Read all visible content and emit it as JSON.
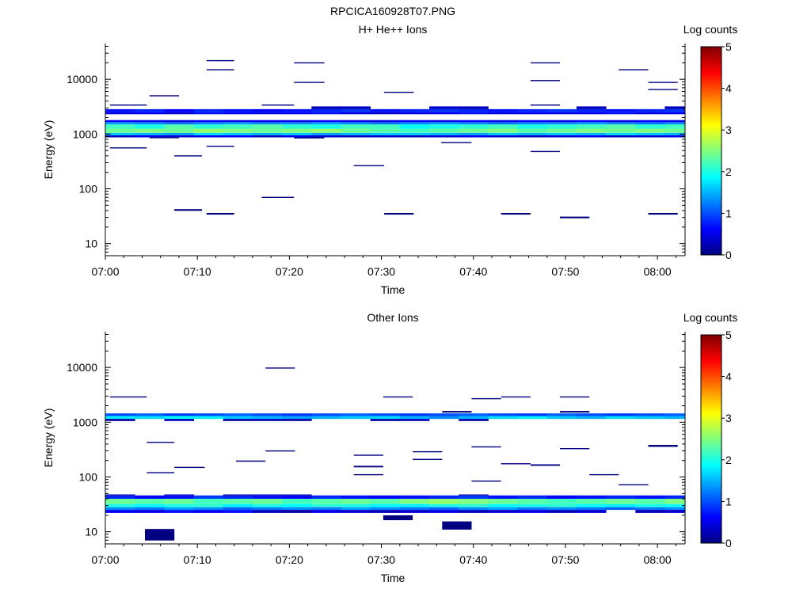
{
  "page_title": "RPCICA160928T07.PNG",
  "chart_data": [
    {
      "type": "heatmap",
      "title": "H+ He++ Ions",
      "xlabel": "Time",
      "ylabel": "Energy (eV)",
      "x_ticks": [
        "07:00",
        "07:10",
        "07:20",
        "07:30",
        "07:40",
        "07:50",
        "08:00"
      ],
      "x_range_minutes": [
        0,
        63
      ],
      "y_scale": "log",
      "ylim": [
        6,
        45000
      ],
      "y_ticks": [
        "10",
        "100",
        "1000",
        "10000"
      ],
      "y_tick_values": [
        10,
        100,
        1000,
        10000
      ],
      "colorbar": {
        "label": "Log counts",
        "range": [
          0,
          5
        ],
        "ticks": [
          "0",
          "1",
          "2",
          "3",
          "4",
          "5"
        ]
      },
      "time_bins_minutes": [
        0,
        3.2,
        6.4,
        9.6,
        12.8,
        16,
        19.2,
        22.4,
        25.6,
        28.8,
        32,
        35.2,
        38.4,
        41.6,
        44.8,
        48,
        51.2,
        54.4,
        57.6,
        60.8,
        63
      ],
      "bands": [
        {
          "elow": 1050,
          "ehigh": 1250,
          "levels": [
            2.4,
            2.5,
            2.4,
            2.6,
            2.5,
            2.4,
            2.5,
            2.6,
            2.4,
            2.3,
            2.2,
            2.3,
            2.4,
            2.5,
            2.3,
            2.4,
            2.5,
            2.4,
            2.5,
            2.4
          ]
        },
        {
          "elow": 1250,
          "ehigh": 1500,
          "levels": [
            2.2,
            2.0,
            2.3,
            2.1,
            2.2,
            2.3,
            2.1,
            2.0,
            2.2,
            2.2,
            1.9,
            2.0,
            2.1,
            2.2,
            2.0,
            2.1,
            2.2,
            2.3,
            2.1,
            2.2
          ]
        },
        {
          "elow": 950,
          "ehigh": 1050,
          "levels": [
            1.6,
            1.5,
            1.4,
            1.7,
            1.6,
            1.5,
            1.6,
            1.4,
            1.5,
            1.6,
            1.6,
            1.5,
            1.4,
            1.6,
            1.5,
            1.6,
            1.5,
            1.7,
            1.6,
            1.5
          ]
        },
        {
          "elow": 1500,
          "ehigh": 1650,
          "levels": [
            1.4,
            1.3,
            1.2,
            1.3,
            1.4,
            1.3,
            1.3,
            1.4,
            1.3,
            1.2,
            1.3,
            1.4,
            1.3,
            1.2,
            1.3,
            1.3,
            1.4,
            1.3,
            1.2,
            1.3
          ]
        },
        {
          "elow": 1650,
          "ehigh": 1800,
          "levels": [
            0.6,
            0.5,
            0.5,
            0.6,
            0.5,
            0.6,
            0.5,
            0.6,
            0.5,
            0.5,
            0.6,
            0.5,
            0.6,
            0.5,
            0.6,
            0.5,
            0.6,
            0.5,
            0.6,
            0.5
          ]
        },
        {
          "elow": 870,
          "ehigh": 950,
          "levels": [
            0.3,
            0.5,
            0.4,
            0.5,
            0.6,
            0.3,
            0.5,
            0.4,
            0.3,
            0.4,
            0.3,
            0.4,
            0.5,
            0.4,
            0.3,
            0.4,
            0.5,
            0.3,
            0.4,
            0.5
          ]
        },
        {
          "elow": 2300,
          "ehigh": 2550,
          "levels": [
            0.5,
            0.6,
            0.4,
            0.7,
            0.6,
            0.5,
            0.6,
            0.7,
            0.5,
            0.4,
            0.5,
            0.6,
            0.7,
            0.5,
            0.6,
            0.5,
            0.6,
            0.7,
            0.5,
            0.6
          ]
        },
        {
          "elow": 2550,
          "ehigh": 2850,
          "levels": [
            0.7,
            0.8,
            0.6,
            0.8,
            0.7,
            0.6,
            0.7,
            0.8,
            0.9,
            0.7,
            0.8,
            0.9,
            0.8,
            0.7,
            0.8,
            0.9,
            0.8,
            0.7,
            0.8,
            0.9
          ]
        },
        {
          "elow": 2850,
          "ehigh": 3200,
          "levels": [
            0.0,
            0.0,
            0.0,
            0.0,
            0.0,
            0.0,
            0.0,
            0.3,
            0.3,
            0.0,
            0.0,
            0.4,
            0.3,
            0.0,
            0.0,
            0.0,
            0.3,
            0.0,
            0.0,
            0.3
          ]
        }
      ],
      "segments": [
        {
          "t0": 0.5,
          "t1": 4.5,
          "e": 3400,
          "h": 0.018,
          "level": 0
        },
        {
          "t0": 4.8,
          "t1": 8.0,
          "e": 5000,
          "h": 0.02,
          "level": 0
        },
        {
          "t0": 0.5,
          "t1": 4.5,
          "e": 560,
          "h": 0.018,
          "level": 0
        },
        {
          "t0": 4.8,
          "t1": 8.0,
          "e": 860,
          "h": 0.02,
          "level": 0
        },
        {
          "t0": 7.5,
          "t1": 10.5,
          "e": 400,
          "h": 0.018,
          "level": 0
        },
        {
          "t0": 7.5,
          "t1": 10.5,
          "e": 41,
          "h": 0.03,
          "level": 0
        },
        {
          "t0": 11,
          "t1": 14,
          "e": 22000,
          "h": 0.018,
          "level": 0
        },
        {
          "t0": 11,
          "t1": 14,
          "e": 15000,
          "h": 0.018,
          "level": 0
        },
        {
          "t0": 11,
          "t1": 14,
          "e": 600,
          "h": 0.018,
          "level": 0
        },
        {
          "t0": 11,
          "t1": 14,
          "e": 35,
          "h": 0.03,
          "level": 0
        },
        {
          "t0": 17,
          "t1": 20.5,
          "e": 70,
          "h": 0.018,
          "level": 0
        },
        {
          "t0": 17,
          "t1": 20.5,
          "e": 3400,
          "h": 0.018,
          "level": 0
        },
        {
          "t0": 20.5,
          "t1": 23.8,
          "e": 20000,
          "h": 0.02,
          "level": 0
        },
        {
          "t0": 20.5,
          "t1": 23.8,
          "e": 8800,
          "h": 0.018,
          "level": 0
        },
        {
          "t0": 20.5,
          "t1": 23.8,
          "e": 850,
          "h": 0.02,
          "level": 0
        },
        {
          "t0": 27,
          "t1": 30.3,
          "e": 265,
          "h": 0.018,
          "level": 0
        },
        {
          "t0": 30.3,
          "t1": 33.5,
          "e": 5800,
          "h": 0.018,
          "level": 0
        },
        {
          "t0": 30.3,
          "t1": 33.5,
          "e": 35,
          "h": 0.03,
          "level": 0
        },
        {
          "t0": 36.5,
          "t1": 39.8,
          "e": 700,
          "h": 0.018,
          "level": 0
        },
        {
          "t0": 43,
          "t1": 46.2,
          "e": 35,
          "h": 0.03,
          "level": 0
        },
        {
          "t0": 46.2,
          "t1": 49.4,
          "e": 20000,
          "h": 0.02,
          "level": 0
        },
        {
          "t0": 46.2,
          "t1": 49.4,
          "e": 9500,
          "h": 0.018,
          "level": 0
        },
        {
          "t0": 46.2,
          "t1": 49.4,
          "e": 3400,
          "h": 0.018,
          "level": 0
        },
        {
          "t0": 46.2,
          "t1": 49.4,
          "e": 480,
          "h": 0.02,
          "level": 0
        },
        {
          "t0": 49.4,
          "t1": 52.6,
          "e": 30,
          "h": 0.03,
          "level": 0
        },
        {
          "t0": 55.8,
          "t1": 59,
          "e": 15000,
          "h": 0.018,
          "level": 0
        },
        {
          "t0": 59,
          "t1": 62.2,
          "e": 8800,
          "h": 0.018,
          "level": 0
        },
        {
          "t0": 59,
          "t1": 62.2,
          "e": 6500,
          "h": 0.02,
          "level": 0
        },
        {
          "t0": 59,
          "t1": 62.2,
          "e": 35,
          "h": 0.03,
          "level": 0
        }
      ]
    },
    {
      "type": "heatmap",
      "title": "Other Ions",
      "xlabel": "Time",
      "ylabel": "Energy (eV)",
      "x_ticks": [
        "07:00",
        "07:10",
        "07:20",
        "07:30",
        "07:40",
        "07:50",
        "08:00"
      ],
      "x_range_minutes": [
        0,
        63
      ],
      "y_scale": "log",
      "ylim": [
        6,
        45000
      ],
      "y_ticks": [
        "10",
        "100",
        "1000",
        "10000"
      ],
      "y_tick_values": [
        10,
        100,
        1000,
        10000
      ],
      "colorbar": {
        "label": "Log counts",
        "range": [
          0,
          5
        ],
        "ticks": [
          "0",
          "1",
          "2",
          "3",
          "4",
          "5"
        ]
      },
      "time_bins_minutes": [
        0,
        3.2,
        6.4,
        9.6,
        12.8,
        16,
        19.2,
        22.4,
        25.6,
        28.8,
        32,
        35.2,
        38.4,
        41.6,
        44.8,
        48,
        51.2,
        54.4,
        57.6,
        60.8,
        63
      ],
      "bands": [
        {
          "elow": 1150,
          "ehigh": 1300,
          "levels": [
            1.8,
            1.7,
            1.9,
            1.8,
            1.6,
            1.5,
            1.4,
            1.5,
            1.6,
            1.7,
            1.5,
            1.3,
            1.5,
            1.7,
            1.8,
            1.6,
            1.5,
            1.7,
            1.6,
            1.5
          ]
        },
        {
          "elow": 1300,
          "ehigh": 1450,
          "levels": [
            1.0,
            1.1,
            0.9,
            1.0,
            1.1,
            1.0,
            0.9,
            1.0,
            1.1,
            1.0,
            0.9,
            1.0,
            1.1,
            1.0,
            0.9,
            1.1,
            1.0,
            0.9,
            1.0,
            1.1
          ]
        },
        {
          "elow": 1050,
          "ehigh": 1150,
          "levels": [
            0.2,
            0.0,
            0.3,
            0.0,
            0.2,
            0.3,
            0.2,
            0.0,
            0.0,
            0.2,
            0.3,
            0.0,
            0.2,
            0.0,
            0.0,
            0.0,
            0.0,
            0.0,
            0.0,
            0.0
          ]
        },
        {
          "elow": 32,
          "ehigh": 40,
          "levels": [
            2.4,
            2.3,
            2.4,
            2.2,
            2.3,
            2.4,
            2.2,
            2.3,
            2.4,
            2.3,
            2.5,
            2.6,
            2.5,
            2.4,
            2.3,
            2.2,
            2.3,
            2.4,
            2.3,
            2.5
          ]
        },
        {
          "elow": 28,
          "ehigh": 32,
          "levels": [
            2.0,
            1.9,
            2.0,
            2.1,
            1.8,
            2.0,
            1.9,
            2.1,
            2.0,
            1.9,
            1.8,
            2.0,
            2.1,
            1.9,
            2.0,
            2.1,
            1.9,
            1.8,
            2.0,
            1.9
          ]
        },
        {
          "elow": 25,
          "ehigh": 28,
          "levels": [
            1.3,
            1.2,
            1.4,
            1.3,
            1.1,
            1.2,
            1.3,
            1.2,
            1.4,
            1.3,
            1.2,
            1.1,
            1.3,
            1.4,
            1.2,
            1.3,
            1.2,
            1.1,
            1.2,
            1.3
          ]
        },
        {
          "elow": 22,
          "ehigh": 25,
          "levels": [
            0.6,
            0.5,
            0.7,
            0.6,
            0.7,
            0.3,
            0.2,
            0.5,
            0.4,
            0.3,
            0.4,
            0.5,
            0.3,
            0.4,
            0.5,
            0.3,
            0.4,
            0.0,
            0.3,
            0.4
          ]
        },
        {
          "elow": 40,
          "ehigh": 46,
          "levels": [
            0.8,
            0.6,
            0.7,
            0.9,
            0.8,
            0.7,
            0.6,
            0.8,
            0.7,
            0.6,
            0.7,
            0.8,
            0.9,
            0.7,
            0.8,
            0.6,
            0.7,
            0.8,
            0.7,
            0.8
          ]
        },
        {
          "elow": 46,
          "ehigh": 48,
          "levels": [
            0.2,
            0.0,
            0.3,
            0.0,
            0.2,
            0.3,
            0.2,
            0.0,
            0.0,
            0.0,
            0.0,
            0.0,
            0.2,
            0.0,
            0.0,
            0.0,
            0.0,
            0.0,
            0.0,
            0.0
          ]
        }
      ],
      "segments": [
        {
          "t0": 0.5,
          "t1": 4.5,
          "e": 2900,
          "h": 0.018,
          "level": 0
        },
        {
          "t0": 4.3,
          "t1": 7.5,
          "e": 8.8,
          "h": 0.21,
          "level": 0
        },
        {
          "t0": 4.5,
          "t1": 7.5,
          "e": 430,
          "h": 0.018,
          "level": 0
        },
        {
          "t0": 4.5,
          "t1": 7.5,
          "e": 120,
          "h": 0.018,
          "level": 0
        },
        {
          "t0": 7.5,
          "t1": 10.8,
          "e": 150,
          "h": 0.018,
          "level": 0
        },
        {
          "t0": 14.2,
          "t1": 17.4,
          "e": 195,
          "h": 0.022,
          "level": 0
        },
        {
          "t0": 17.4,
          "t1": 20.6,
          "e": 9800,
          "h": 0.018,
          "level": 0
        },
        {
          "t0": 17.4,
          "t1": 20.6,
          "e": 300,
          "h": 0.018,
          "level": 0
        },
        {
          "t0": 27,
          "t1": 30.2,
          "e": 250,
          "h": 0.02,
          "level": 0
        },
        {
          "t0": 27,
          "t1": 30.2,
          "e": 155,
          "h": 0.028,
          "level": 0
        },
        {
          "t0": 27,
          "t1": 30.2,
          "e": 110,
          "h": 0.02,
          "level": 0
        },
        {
          "t0": 30.2,
          "t1": 33.4,
          "e": 2900,
          "h": 0.018,
          "level": 0
        },
        {
          "t0": 30.2,
          "t1": 33.4,
          "e": 18,
          "h": 0.09,
          "level": 0
        },
        {
          "t0": 33.4,
          "t1": 36.6,
          "e": 290,
          "h": 0.018,
          "level": 0
        },
        {
          "t0": 33.4,
          "t1": 36.6,
          "e": 210,
          "h": 0.018,
          "level": 0
        },
        {
          "t0": 36.6,
          "t1": 39.8,
          "e": 13,
          "h": 0.15,
          "level": 0
        },
        {
          "t0": 39.8,
          "t1": 43,
          "e": 2700,
          "h": 0.018,
          "level": 0
        },
        {
          "t0": 39.8,
          "t1": 43,
          "e": 355,
          "h": 0.02,
          "level": 0
        },
        {
          "t0": 39.8,
          "t1": 43,
          "e": 85,
          "h": 0.012,
          "level": 0
        },
        {
          "t0": 43,
          "t1": 46.2,
          "e": 2900,
          "h": 0.018,
          "level": 0
        },
        {
          "t0": 43,
          "t1": 46.2,
          "e": 175,
          "h": 0.018,
          "level": 0
        },
        {
          "t0": 46.2,
          "t1": 49.4,
          "e": 165,
          "h": 0.028,
          "level": 0
        },
        {
          "t0": 49.4,
          "t1": 52.6,
          "e": 2900,
          "h": 0.018,
          "level": 0
        },
        {
          "t0": 49.4,
          "t1": 52.6,
          "e": 1550,
          "h": 0.03,
          "level": 0
        },
        {
          "t0": 49.4,
          "t1": 52.6,
          "e": 330,
          "h": 0.018,
          "level": 0
        },
        {
          "t0": 52.6,
          "t1": 55.8,
          "e": 110,
          "h": 0.02,
          "level": 0
        },
        {
          "t0": 55.8,
          "t1": 59,
          "e": 72,
          "h": 0.018,
          "level": 0
        },
        {
          "t0": 59,
          "t1": 62.2,
          "e": 370,
          "h": 0.035,
          "level": 0
        },
        {
          "t0": 36.6,
          "t1": 39.8,
          "e": 1550,
          "h": 0.03,
          "level": 0
        }
      ]
    }
  ]
}
